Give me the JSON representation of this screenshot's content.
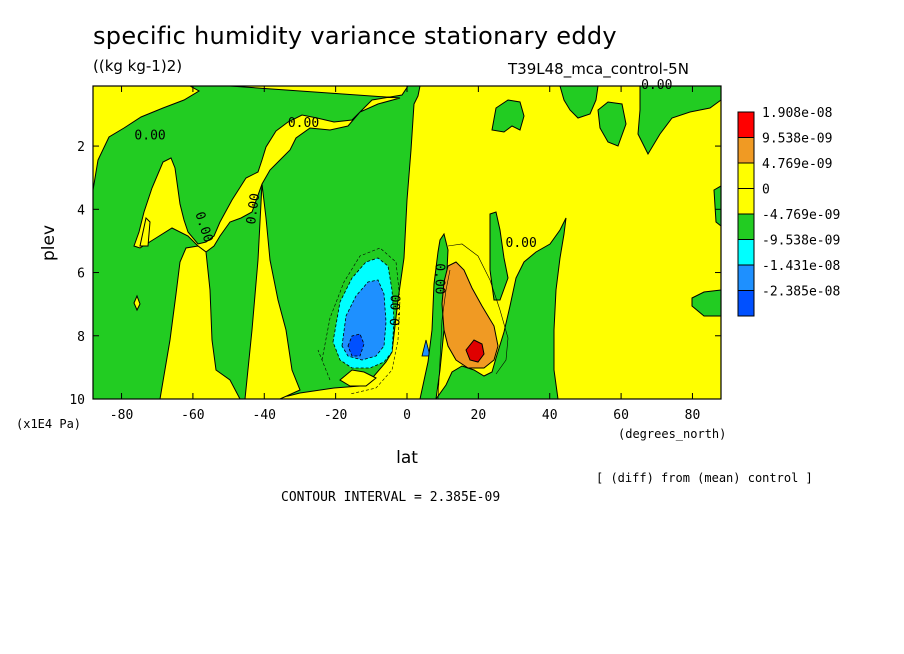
{
  "header": {
    "title": "specific humidity variance stationary eddy",
    "units": "((kg kg-1)2)",
    "run": "T39L48_mca_control-5N"
  },
  "footer": {
    "diff_note": "[ (diff) from (mean) control ]",
    "contour_interval": "CONTOUR INTERVAL = 2.385E-09"
  },
  "chart_data": {
    "type": "contour",
    "xlabel": "lat",
    "ylabel": "plev",
    "x_units": "(degrees_north)",
    "y_units": "(x1E4 Pa)",
    "xlim": [
      -88,
      88
    ],
    "ylim": [
      10,
      0.1
    ],
    "x_ticks": [
      "-80",
      "-60",
      "-40",
      "-20",
      "0",
      "20",
      "40",
      "60",
      "80"
    ],
    "x_tick_values": [
      -80,
      -60,
      -40,
      -20,
      0,
      20,
      40,
      60,
      80
    ],
    "y_ticks": [
      "2",
      "4",
      "6",
      "8",
      "10"
    ],
    "y_tick_values": [
      2,
      4,
      6,
      8,
      10
    ],
    "contour_interval": 2.385e-09,
    "contour_labels": [
      {
        "text": "0.00",
        "lat": -72,
        "plev": 1.8,
        "rotate": 0
      },
      {
        "text": "0.00",
        "lat": -29,
        "plev": 1.4,
        "rotate": 0
      },
      {
        "text": "0.00",
        "lat": -58,
        "plev": 4.6,
        "rotate": 72
      },
      {
        "text": "0.00",
        "lat": -42,
        "plev": 4.0,
        "rotate": -82
      },
      {
        "text": "0.00",
        "lat": -2,
        "plev": 7.2,
        "rotate": -88
      },
      {
        "text": "0.00",
        "lat": 8,
        "plev": 6.2,
        "rotate": 90
      },
      {
        "text": "0.00",
        "lat": 32,
        "plev": 5.2,
        "rotate": 0
      },
      {
        "text": "0.00",
        "lat": 70,
        "plev": 0.2,
        "rotate": 0
      }
    ],
    "legend": {
      "placement": "right",
      "entries": [
        {
          "label": "1.908e-08",
          "color": "#ff0000"
        },
        {
          "label": "9.538e-09",
          "color": "#f09a23"
        },
        {
          "label": "4.769e-09",
          "color": "#ffff00"
        },
        {
          "label": "0",
          "color": "#ffff00"
        },
        {
          "label": "-4.769e-09",
          "color": "#22cc22"
        },
        {
          "label": "-9.538e-09",
          "color": "#00ffff"
        },
        {
          "label": "-1.431e-08",
          "color": "#1e90ff"
        },
        {
          "label": "-2.385e-08",
          "color": "#0050ff"
        }
      ]
    },
    "colors": {
      "positive": "#ffff00",
      "negative": "#22cc22",
      "cyan": "#00ffff",
      "blue": "#1e90ff",
      "orange": "#f09a23",
      "red": "#e00000"
    }
  }
}
